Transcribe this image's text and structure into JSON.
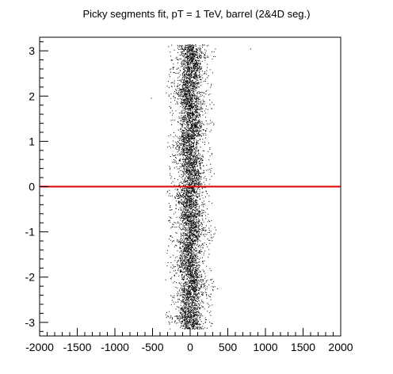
{
  "chart_data": {
    "type": "scatter",
    "title": "Picky segments fit, pT = 1 TeV, barrel (2&4D seg.)",
    "xlabel": "",
    "ylabel": "",
    "xlim": [
      -2000,
      2000
    ],
    "ylim": [
      -3.3,
      3.3
    ],
    "x_ticks": [
      -2000,
      -1500,
      -1000,
      -500,
      0,
      500,
      1000,
      1500,
      2000
    ],
    "x_tick_labels": [
      "-2000",
      "-1500",
      "-1000",
      "-500",
      "0",
      "500",
      "1000",
      "1500",
      "2000"
    ],
    "y_ticks": [
      -3,
      -2,
      -1,
      0,
      1,
      2,
      3
    ],
    "y_tick_labels": [
      "-3",
      "-2",
      "-1",
      "0",
      "1",
      "2",
      "3"
    ],
    "grid": false,
    "legend": "none",
    "reference_line": {
      "y": 0,
      "color": "#e00000"
    },
    "point_color": "#000000",
    "distribution": {
      "x_center": 0,
      "x_core_halfwidth": 150,
      "x_tail_halfwidth": 300,
      "y_range": [
        -3.14,
        3.14
      ],
      "approx_points": 6500
    },
    "outliers": [
      {
        "x": -520,
        "y": 1.96
      },
      {
        "x": 800,
        "y": 3.05
      },
      {
        "x": -330,
        "y": -2.05
      },
      {
        "x": 360,
        "y": -2.25
      },
      {
        "x": 330,
        "y": 3.05
      },
      {
        "x": -280,
        "y": 0.9
      }
    ]
  }
}
